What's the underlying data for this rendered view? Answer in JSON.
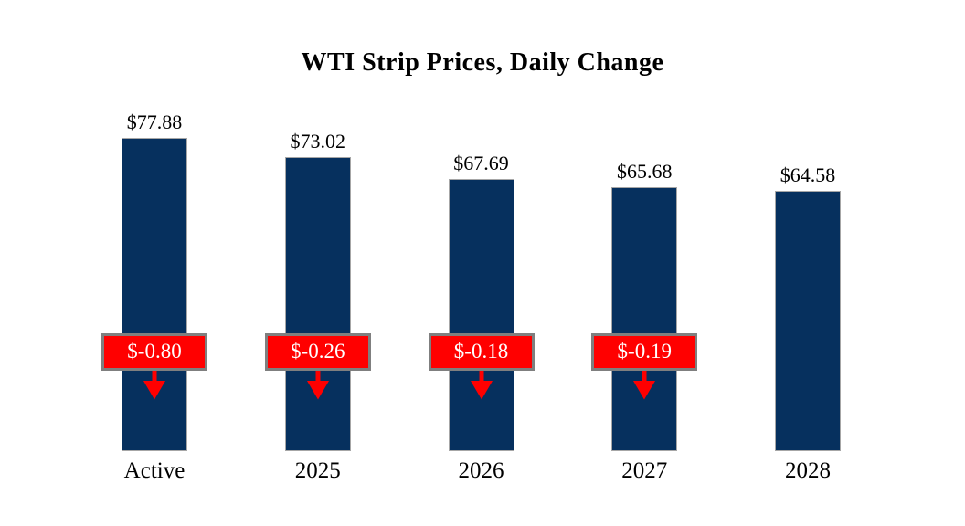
{
  "chart_data": {
    "type": "bar",
    "title": "WTI Strip Prices, Daily Change",
    "xlabel": "",
    "ylabel": "",
    "categories": [
      "Active",
      "2025",
      "2026",
      "2027",
      "2028"
    ],
    "values": [
      77.88,
      73.02,
      67.69,
      65.68,
      64.58
    ],
    "value_labels": [
      "$77.88",
      "$73.02",
      "$67.69",
      "$65.68",
      "$64.58"
    ],
    "daily_changes": [
      -0.8,
      -0.26,
      -0.18,
      -0.19,
      null
    ],
    "change_labels": [
      "$-0.80",
      "$-0.26",
      "$-0.18",
      "$-0.19",
      null
    ],
    "ylim": [
      0,
      80
    ],
    "grid": false,
    "legend": null,
    "colors": {
      "bar_fill": "#06305e",
      "bar_border": "#a6a6a6",
      "change_bg": "#ff0000",
      "change_border": "#7f7f7f",
      "change_text": "#ffffff",
      "arrow": "#ff0000",
      "text": "#000000",
      "background": "#ffffff"
    }
  }
}
